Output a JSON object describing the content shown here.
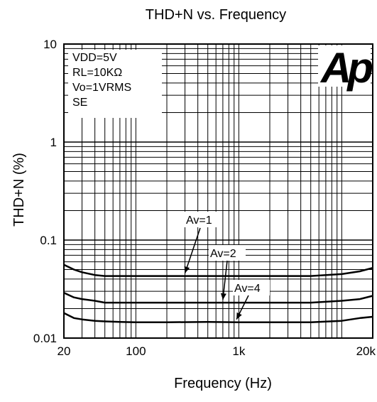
{
  "chart_data": {
    "type": "line",
    "title": "THD+N vs. Frequency",
    "xlabel": "Frequency (Hz)",
    "ylabel": "THD+N (%)",
    "x_scale": "log",
    "y_scale": "log",
    "xlim": [
      20,
      20000
    ],
    "ylim": [
      0.01,
      10
    ],
    "grid": true,
    "x_ticks": [
      {
        "value": 20,
        "label": "20"
      },
      {
        "value": 100,
        "label": "100"
      },
      {
        "value": 1000,
        "label": "1k"
      },
      {
        "value": 20000,
        "label": "20k"
      }
    ],
    "y_ticks": [
      {
        "value": 10,
        "label": "10"
      },
      {
        "value": 1,
        "label": "1"
      },
      {
        "value": 0.1,
        "label": "0.1"
      },
      {
        "value": 0.01,
        "label": "0.01"
      }
    ],
    "conditions": [
      "VDD=5V",
      "RL=10KΩ",
      "Vo=1VRMS",
      "SE"
    ],
    "logo": "Ap",
    "series": [
      {
        "name": "Av=1",
        "x": [
          20,
          25,
          30,
          40,
          50,
          70,
          100,
          200,
          500,
          1000,
          2000,
          5000,
          10000,
          15000,
          20000
        ],
        "values": [
          0.056,
          0.05,
          0.047,
          0.044,
          0.043,
          0.043,
          0.043,
          0.043,
          0.043,
          0.043,
          0.043,
          0.043,
          0.045,
          0.048,
          0.052
        ]
      },
      {
        "name": "Av=2",
        "x": [
          20,
          25,
          30,
          40,
          50,
          70,
          100,
          200,
          500,
          1000,
          2000,
          5000,
          10000,
          15000,
          20000
        ],
        "values": [
          0.029,
          0.026,
          0.025,
          0.024,
          0.023,
          0.023,
          0.023,
          0.023,
          0.023,
          0.023,
          0.023,
          0.023,
          0.024,
          0.025,
          0.027
        ]
      },
      {
        "name": "Av=4",
        "x": [
          20,
          25,
          30,
          40,
          50,
          70,
          100,
          200,
          500,
          1000,
          2000,
          5000,
          10000,
          15000,
          20000
        ],
        "values": [
          0.018,
          0.016,
          0.0155,
          0.015,
          0.0148,
          0.0146,
          0.0145,
          0.0145,
          0.0146,
          0.0145,
          0.0145,
          0.0145,
          0.015,
          0.016,
          0.0165
        ]
      }
    ],
    "annotations": [
      {
        "text": "Av=1",
        "series": "Av=1"
      },
      {
        "text": "Av=2",
        "series": "Av=2"
      },
      {
        "text": "Av=4",
        "series": "Av=4"
      }
    ]
  }
}
